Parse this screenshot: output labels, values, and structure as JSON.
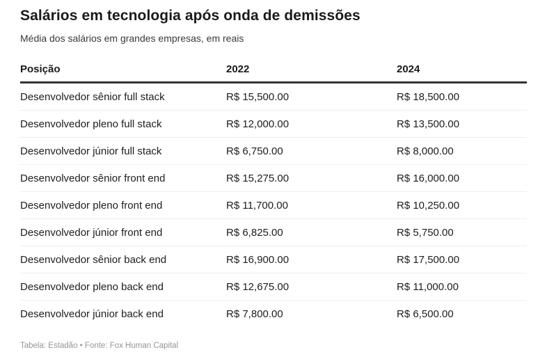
{
  "chart_data": {
    "type": "table",
    "title": "Salários em tecnologia após onda de demissões",
    "subtitle": "Média dos salários em grandes empresas, em reais",
    "columns": [
      "Posição",
      "2022",
      "2024"
    ],
    "rows": [
      [
        "Desenvolvedor sênior full stack",
        "R$ 15,500.00",
        "R$ 18,500.00"
      ],
      [
        "Desenvolvedor pleno full stack",
        "R$ 12,000.00",
        "R$ 13,500.00"
      ],
      [
        "Desenvolvedor júnior full stack",
        "R$ 6,750.00",
        "R$ 8,000.00"
      ],
      [
        "Desenvolvedor sênior front end",
        "R$ 15,275.00",
        "R$ 16,000.00"
      ],
      [
        "Desenvolvedor pleno front end",
        "R$ 11,700.00",
        "R$ 10,250.00"
      ],
      [
        "Desenvolvedor júnior front end",
        "R$ 6,825.00",
        "R$ 5,750.00"
      ],
      [
        "Desenvolvedor sênior back end",
        "R$ 16,900.00",
        "R$ 17,500.00"
      ],
      [
        "Desenvolvedor pleno back end",
        "R$ 12,675.00",
        "R$ 11,000.00"
      ],
      [
        "Desenvolvedor júnior back end",
        "R$ 7,800.00",
        "R$ 6,500.00"
      ]
    ],
    "footer": "Tabela: Estadão • Fonte: Fox Human Capital",
    "layout": {
      "legend_position": "none",
      "grid": "horizontal-row-separators"
    }
  },
  "colors": {
    "background": "#ffffff",
    "title_text": "#1a1a1a",
    "body_text": "#1d1d1d",
    "muted_text": "#959595",
    "header_rule": "#333333",
    "row_rule": "#eeeeee"
  }
}
